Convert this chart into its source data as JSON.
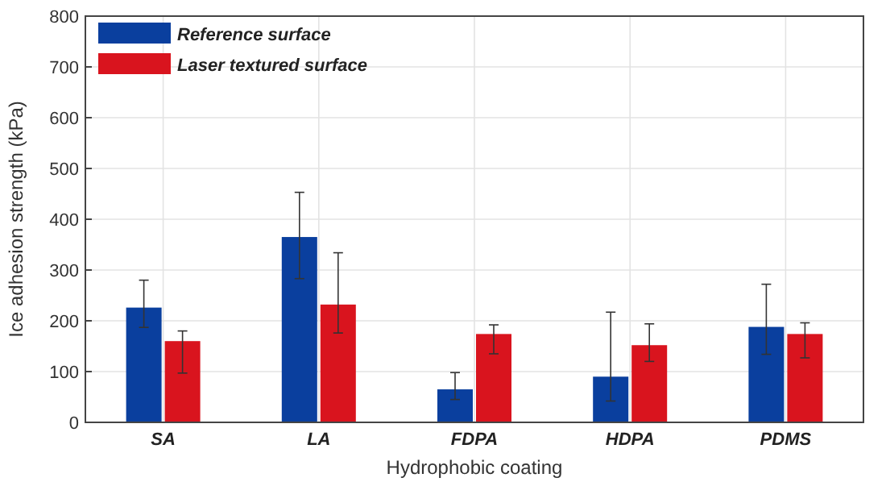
{
  "chart_data": {
    "type": "bar",
    "xlabel": "Hydrophobic coating",
    "ylabel": "Ice adhesion strength (kPa)",
    "categories": [
      "SA",
      "LA",
      "FDPA",
      "HDPA",
      "PDMS"
    ],
    "series": [
      {
        "name": "Reference surface",
        "color": "#0a3f9e",
        "values": [
          226,
          365,
          65,
          90,
          188
        ],
        "errors": [
          [
            187,
            280
          ],
          [
            283,
            453
          ],
          [
            45,
            98
          ],
          [
            42,
            217
          ],
          [
            134,
            272
          ]
        ]
      },
      {
        "name": "Laser textured surface",
        "color": "#d9141e",
        "values": [
          160,
          232,
          174,
          152,
          174
        ],
        "errors": [
          [
            97,
            180
          ],
          [
            176,
            334
          ],
          [
            135,
            192
          ],
          [
            120,
            194
          ],
          [
            127,
            196
          ]
        ]
      }
    ],
    "ylim": [
      0,
      800
    ],
    "yticks": [
      0,
      100,
      200,
      300,
      400,
      500,
      600,
      700,
      800
    ],
    "grid": true,
    "legend": "top left"
  }
}
